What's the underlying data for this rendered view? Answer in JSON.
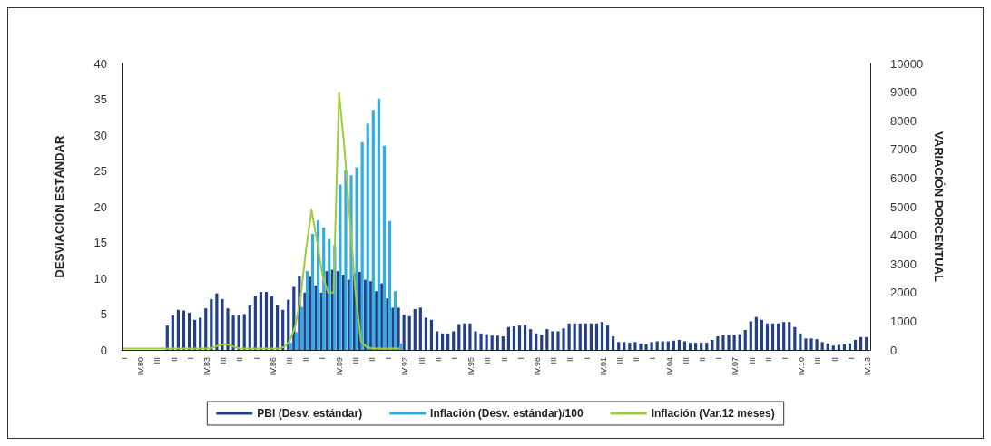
{
  "chart_data": {
    "type": "bar",
    "xlabel": null,
    "ylabel": "DESVIACIÓN ESTÁNDAR",
    "y2label": "VARIACIÓN PORCENTUAL",
    "categories": [
      "I",
      null,
      null,
      "IV.80",
      null,
      null,
      "III",
      null,
      null,
      "II",
      null,
      null,
      "I",
      null,
      null,
      "IV.83",
      null,
      null,
      "III",
      null,
      null,
      "II",
      null,
      null,
      "I",
      null,
      null,
      "IV.86",
      null,
      null,
      "III",
      null,
      null,
      "II",
      null,
      null,
      "I",
      null,
      null,
      "IV.89",
      null,
      null,
      "III",
      null,
      null,
      "II",
      null,
      null,
      "I",
      null,
      null,
      "IV.92",
      null,
      null,
      "III",
      null,
      null,
      "II",
      null,
      null,
      "I",
      null,
      null,
      "IV.95",
      null,
      null,
      "III",
      null,
      null,
      "II",
      null,
      null,
      "I",
      null,
      null,
      "IV.98",
      null,
      null,
      "III",
      null,
      null,
      "II",
      null,
      null,
      "I",
      null,
      null,
      "IV.01",
      null,
      null,
      "III",
      null,
      null,
      "II",
      null,
      null,
      "I",
      null,
      null,
      "IV.04",
      null,
      null,
      "III",
      null,
      null,
      "II",
      null,
      null,
      "I",
      null,
      null,
      "IV.07",
      null,
      null,
      "III",
      null,
      null,
      "II",
      null,
      null,
      "I",
      null,
      null,
      "IV.10",
      null,
      null,
      "III",
      null,
      null,
      "II",
      null,
      null,
      "I",
      null,
      null,
      "IV.13"
    ],
    "series": [
      {
        "name": "PBI (Desv. estándar)",
        "color": "#233f8c",
        "values": [
          null,
          null,
          null,
          null,
          null,
          null,
          null,
          null,
          3.4,
          4.8,
          5.6,
          5.5,
          5.2,
          4.2,
          4.5,
          5.8,
          7.1,
          7.9,
          7.1,
          5.8,
          4.8,
          4.8,
          5.0,
          6.2,
          7.5,
          8.1,
          8.1,
          7.5,
          6.2,
          5.6,
          7.0,
          8.8,
          10.3,
          8.0,
          10.2,
          9.0,
          8.0,
          11.0,
          11.2,
          11.0,
          10.5,
          9.8,
          10.7,
          10.9,
          9.8,
          9.6,
          8.2,
          9.3,
          7.2,
          5.9,
          5.9,
          4.9,
          4.7,
          5.7,
          5.9,
          4.5,
          4.2,
          2.6,
          2.3,
          2.3,
          2.6,
          3.6,
          3.7,
          3.7,
          2.6,
          2.3,
          2.2,
          2.0,
          2.0,
          1.9,
          3.2,
          3.3,
          3.4,
          3.5,
          2.9,
          2.3,
          2.1,
          2.9,
          2.6,
          2.6,
          3.0,
          3.7,
          3.7,
          3.7,
          3.7,
          3.7,
          3.7,
          3.9,
          3.4,
          1.9,
          1.1,
          1.1,
          1.0,
          1.1,
          0.9,
          0.8,
          1.1,
          1.2,
          1.2,
          1.2,
          1.3,
          1.4,
          1.2,
          1.0,
          1.0,
          1.0,
          1.0,
          1.4,
          1.9,
          2.1,
          2.1,
          2.1,
          2.2,
          2.8,
          4.0,
          4.6,
          4.2,
          3.7,
          3.7,
          3.7,
          3.9,
          3.9,
          3.2,
          2.3,
          1.6,
          1.6,
          1.5,
          1.1,
          0.9,
          0.6,
          0.7,
          0.8,
          0.9,
          1.4,
          1.8,
          1.8
        ]
      },
      {
        "name": "Inflación (Desv. estándar)/100",
        "color": "#35ace0",
        "values": [
          null,
          null,
          null,
          null,
          null,
          null,
          null,
          null,
          null,
          null,
          null,
          null,
          null,
          null,
          null,
          null,
          null,
          null,
          null,
          null,
          null,
          null,
          null,
          null,
          null,
          null,
          null,
          null,
          null,
          null,
          1.0,
          2.5,
          6.0,
          11.0,
          16.2,
          18.1,
          17.1,
          15.5,
          14.6,
          23.1,
          25.1,
          24.4,
          25.5,
          29.0,
          31.6,
          33.5,
          35.1,
          28.5,
          18.0,
          8.2,
          0.9,
          null,
          null,
          null,
          null,
          null,
          null,
          null,
          null,
          null,
          null,
          null,
          null,
          null,
          null,
          null,
          null,
          null,
          null,
          null,
          null,
          null,
          null,
          null,
          null,
          null,
          null,
          null,
          null,
          null,
          null,
          null,
          null,
          null,
          null,
          null,
          null,
          null,
          null,
          null,
          null,
          null,
          null,
          null,
          null,
          null,
          null,
          null,
          null,
          null,
          null,
          null,
          null,
          null,
          null,
          null,
          null,
          null,
          null,
          null,
          null,
          null,
          null,
          null,
          null,
          null,
          null,
          null,
          null,
          null,
          null,
          null,
          null,
          null,
          null,
          null,
          null,
          null,
          null,
          null,
          null,
          null,
          null,
          null,
          null,
          null
        ]
      },
      {
        "name": "Inflación (Var.12 meses)",
        "type": "line",
        "axis": "y2",
        "color": "#9ccb3b",
        "values": [
          50,
          50,
          50,
          50,
          50,
          50,
          50,
          50,
          50,
          50,
          50,
          50,
          50,
          50,
          50,
          50,
          80,
          150,
          200,
          180,
          100,
          50,
          50,
          50,
          50,
          50,
          50,
          50,
          50,
          100,
          300,
          800,
          1800,
          3500,
          4880,
          3800,
          2600,
          2000,
          2000,
          8970,
          7000,
          4500,
          2000,
          300,
          100,
          50,
          50,
          50,
          50,
          50,
          50,
          null,
          null,
          null,
          null,
          null,
          null,
          null,
          null,
          null,
          null,
          null,
          null,
          null,
          null,
          null,
          null,
          null,
          null,
          null,
          null,
          null,
          null,
          null,
          null,
          null,
          null,
          null,
          null,
          null,
          null,
          null,
          null,
          null,
          null,
          null,
          null,
          null,
          null,
          null,
          null,
          null,
          null,
          null,
          null,
          null,
          null,
          null,
          null,
          null,
          null,
          null,
          null,
          null,
          null,
          null,
          null,
          null,
          null,
          null,
          null,
          null,
          null,
          null,
          null,
          null,
          null,
          null,
          null,
          null,
          null,
          null,
          null,
          null,
          null,
          null,
          null,
          null,
          null,
          null,
          null,
          null,
          null,
          null,
          null,
          null
        ]
      }
    ],
    "ylim": [
      0,
      40
    ],
    "yticks": [
      0,
      5,
      10,
      15,
      20,
      25,
      30,
      35,
      40
    ],
    "y2lim": [
      0,
      10000
    ],
    "y2ticks": [
      0,
      1000,
      2000,
      3000,
      4000,
      5000,
      6000,
      7000,
      8000,
      9000,
      10000
    ],
    "grid": false,
    "legend": "bottom",
    "marker": "none",
    "line_style": "solid"
  }
}
